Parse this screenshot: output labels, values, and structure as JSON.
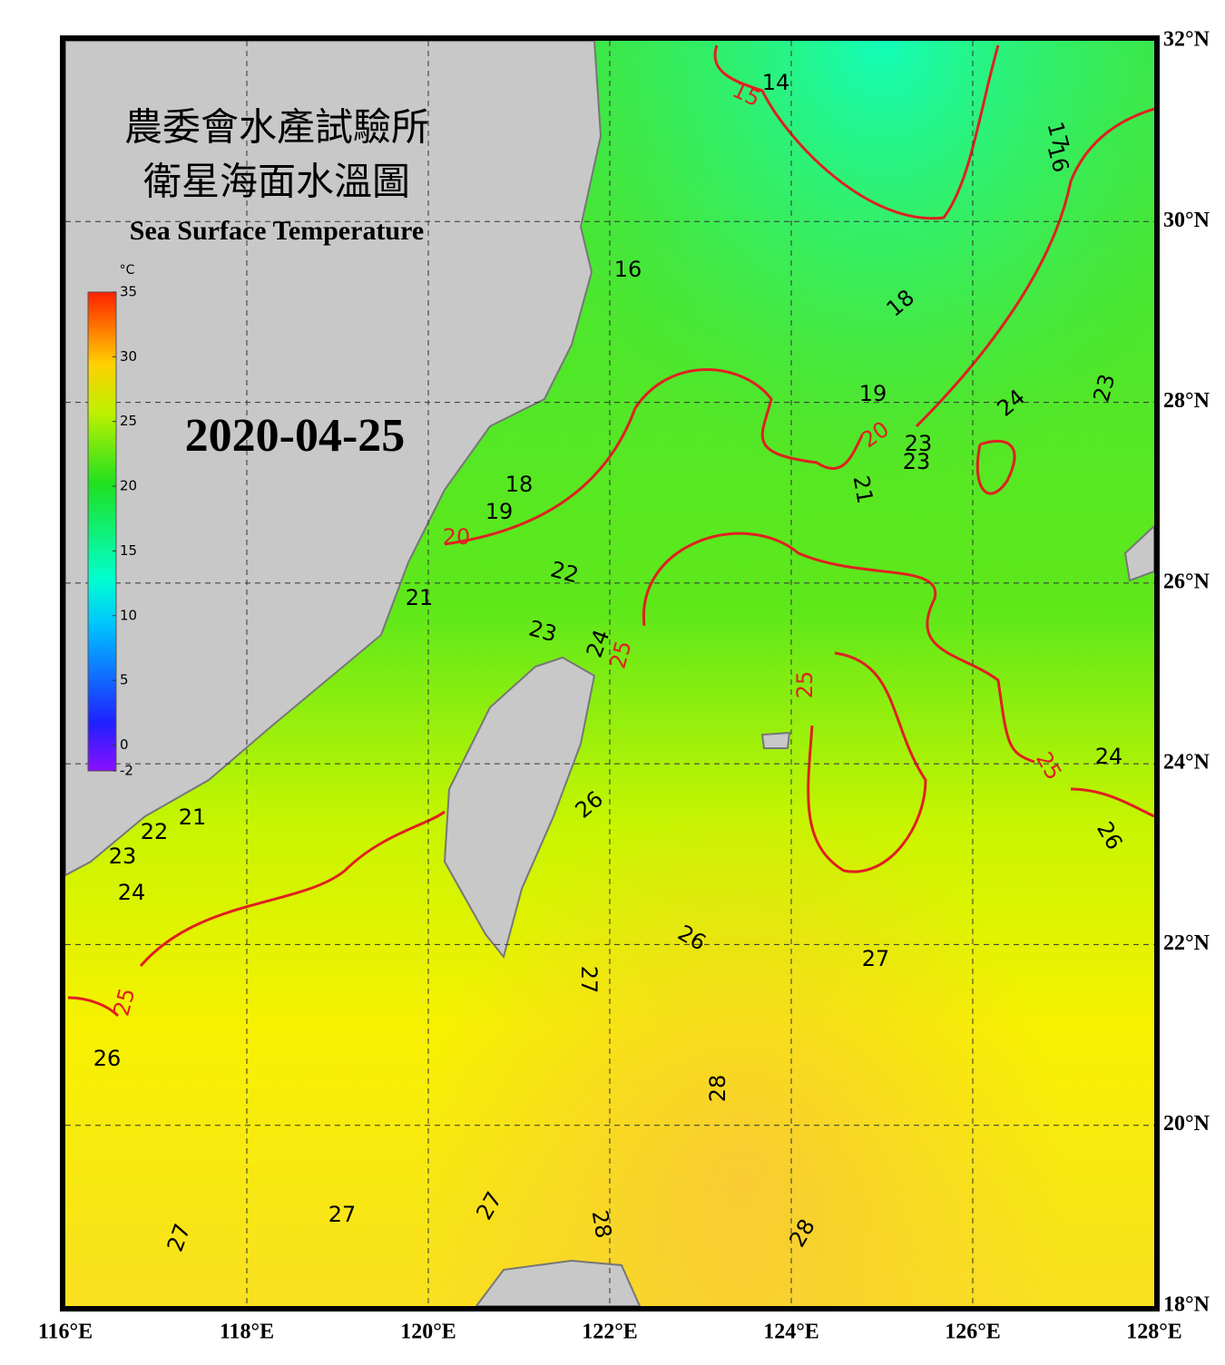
{
  "title": [
    "農委會水產試驗所",
    "衛星海面水溫圖"
  ],
  "subtitle": "Sea Surface Temperature",
  "date": "2020-04-25",
  "colorbar": {
    "unit": "°C",
    "lim": [
      -2,
      35
    ],
    "ticks": [
      -2,
      0,
      5,
      10,
      15,
      20,
      25,
      30,
      35
    ]
  },
  "map": {
    "xlim": [
      116,
      128
    ],
    "ylim": [
      18,
      32
    ],
    "grid": true,
    "xticks": [
      {
        "value": 116,
        "label": "116°E"
      },
      {
        "value": 118,
        "label": "118°E"
      },
      {
        "value": 120,
        "label": "120°E"
      },
      {
        "value": 122,
        "label": "122°E"
      },
      {
        "value": 124,
        "label": "124°E"
      },
      {
        "value": 126,
        "label": "126°E"
      },
      {
        "value": 128,
        "label": "128°E"
      }
    ],
    "yticks": [
      {
        "value": 18,
        "label": "18°N"
      },
      {
        "value": 20,
        "label": "20°N"
      },
      {
        "value": 22,
        "label": "22°N"
      },
      {
        "value": 24,
        "label": "24°N"
      },
      {
        "value": 26,
        "label": "26°N"
      },
      {
        "value": 28,
        "label": "28°N"
      },
      {
        "value": 30,
        "label": "30°N"
      },
      {
        "value": 32,
        "label": "32°N"
      }
    ]
  },
  "contour_labels": [
    14,
    15,
    17,
    16,
    16,
    18,
    19,
    20,
    23,
    23,
    24,
    23,
    21,
    18,
    19,
    20,
    22,
    21,
    23,
    24,
    25,
    25,
    25,
    24,
    26,
    26,
    26,
    27,
    27,
    21,
    22,
    23,
    24,
    25,
    26,
    28,
    27,
    27,
    28,
    28,
    27
  ]
}
